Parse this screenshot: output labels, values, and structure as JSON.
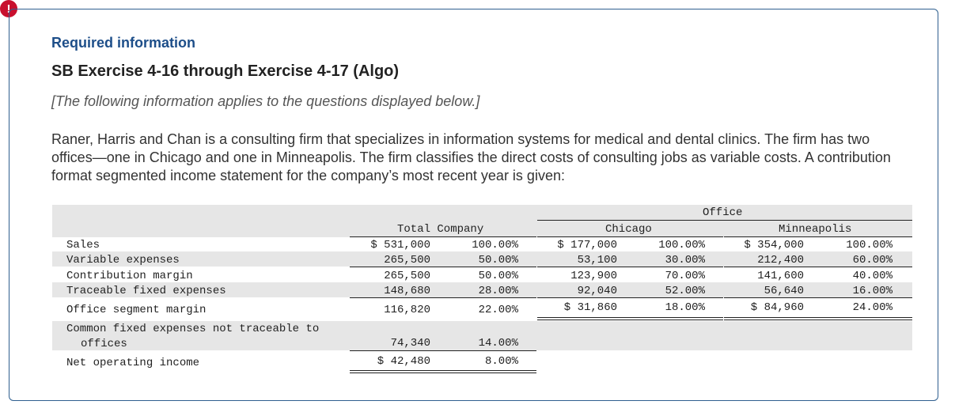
{
  "badge": "!",
  "header": {
    "required": "Required information",
    "exercise": "SB Exercise 4-16 through Exercise 4-17 (Algo)",
    "note": "[The following information applies to the questions displayed below.]"
  },
  "paragraph": "Raner, Harris and Chan is a consulting firm that specializes in information systems for medical and dental clinics. The firm has two offices—one in Chicago and one in Minneapolis. The firm classifies the direct costs of consulting jobs as variable costs. A contribution format segmented income statement for the company’s most recent year is given:",
  "table": {
    "office_header": "Office",
    "total_header": "Total Company",
    "chicago_header": "Chicago",
    "minneapolis_header": "Minneapolis",
    "rows": [
      {
        "label": "Sales",
        "t_amt": "$ 531,000",
        "t_pct": "100.00%",
        "c_amt": "$ 177,000",
        "c_pct": "100.00%",
        "m_amt": "$ 354,000",
        "m_pct": "100.00%"
      },
      {
        "label": "Variable expenses",
        "t_amt": "265,500",
        "t_pct": "50.00%",
        "c_amt": "53,100",
        "c_pct": "30.00%",
        "m_amt": "212,400",
        "m_pct": "60.00%"
      },
      {
        "label": "Contribution margin",
        "t_amt": "265,500",
        "t_pct": "50.00%",
        "c_amt": "123,900",
        "c_pct": "70.00%",
        "m_amt": "141,600",
        "m_pct": "40.00%"
      },
      {
        "label": "Traceable fixed expenses",
        "t_amt": "148,680",
        "t_pct": "28.00%",
        "c_amt": "92,040",
        "c_pct": "52.00%",
        "m_amt": "56,640",
        "m_pct": "16.00%"
      },
      {
        "label": "Office segment margin",
        "t_amt": "116,820",
        "t_pct": "22.00%",
        "c_amt": "$ 31,860",
        "c_pct": "18.00%",
        "m_amt": "$ 84,960",
        "m_pct": "24.00%"
      }
    ],
    "common_label_1": "Common fixed expenses not traceable to",
    "common_label_2": "offices",
    "common_amt": "74,340",
    "common_pct": "14.00%",
    "net_label": "Net operating income",
    "net_amt": "$ 42,480",
    "net_pct": "8.00%"
  }
}
